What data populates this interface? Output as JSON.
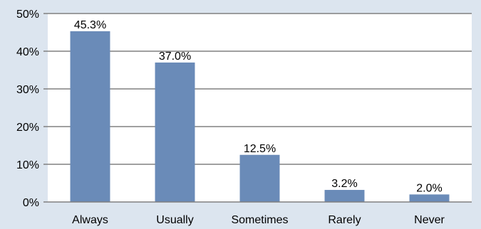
{
  "chart_data": {
    "type": "bar",
    "categories": [
      "Always",
      "Usually",
      "Sometimes",
      "Rarely",
      "Never"
    ],
    "values": [
      45.3,
      37.0,
      12.5,
      3.2,
      2.0
    ],
    "data_labels": [
      "45.3%",
      "37.0%",
      "12.5%",
      "3.2%",
      "2.0%"
    ],
    "ylim": [
      0,
      50
    ],
    "y_ticks": [
      0,
      10,
      20,
      30,
      40,
      50
    ],
    "y_tick_labels": [
      "0%",
      "10%",
      "20%",
      "30%",
      "40%",
      "50%"
    ],
    "title": "",
    "xlabel": "",
    "ylabel": "",
    "grid": true,
    "legend": false,
    "colors": {
      "bar": "#6a8bb8",
      "plot_background": "#ffffff",
      "page_background": "#dce5ef",
      "gridline": "#808080"
    }
  }
}
